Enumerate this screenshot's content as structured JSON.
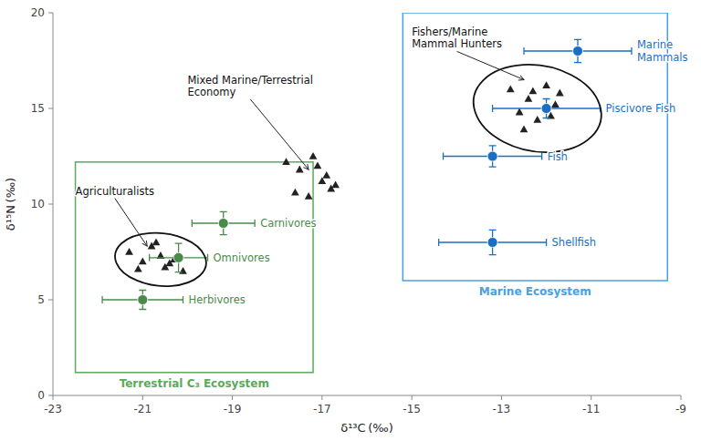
{
  "chart_data": {
    "type": "scatter",
    "xlabel": "δ¹³C (‰)",
    "ylabel": "δ¹⁵N (‰)",
    "xlim": [
      -23,
      -9
    ],
    "ylim": [
      0,
      20
    ],
    "xticks": [
      -23,
      -21,
      -19,
      -17,
      -15,
      -13,
      -11,
      -9
    ],
    "yticks": [
      0,
      5,
      10,
      15,
      20
    ],
    "series": [
      {
        "marker": "triangle",
        "color": "#222222",
        "x": [
          -21.3,
          -21.0,
          -20.8,
          -20.5,
          -20.6,
          -20.3,
          -20.1,
          -21.1,
          -20.7,
          -20.4
        ],
        "values": [
          7.5,
          7.0,
          7.8,
          6.7,
          7.3,
          7.1,
          6.5,
          6.6,
          8.0,
          6.9
        ]
      },
      {
        "marker": "triangle",
        "color": "#222222",
        "x": [
          -17.8,
          -17.5,
          -17.2,
          -17.0,
          -16.8,
          -17.3,
          -17.6,
          -16.9,
          -17.1,
          -16.7
        ],
        "values": [
          12.2,
          11.8,
          12.5,
          11.2,
          10.8,
          10.4,
          10.6,
          11.5,
          12.0,
          11.0
        ]
      },
      {
        "marker": "triangle",
        "color": "#222222",
        "x": [
          -12.8,
          -12.4,
          -12.0,
          -12.6,
          -12.2,
          -11.8,
          -12.3,
          -11.9,
          -12.5,
          -11.7
        ],
        "values": [
          16.0,
          15.5,
          16.2,
          14.8,
          14.4,
          15.2,
          15.9,
          14.6,
          13.9,
          15.8
        ]
      },
      {
        "marker": "circle",
        "color": "#4a8a4a",
        "x": [
          -21.0,
          -20.2,
          -19.2
        ],
        "values": [
          5.0,
          7.2,
          9.0
        ],
        "xerr": [
          0.9,
          0.65,
          0.7
        ],
        "yerr": [
          0.5,
          0.75,
          0.6
        ],
        "labels": [
          "Herbivores",
          "Omnivores",
          "Carnivores"
        ]
      },
      {
        "marker": "circle",
        "color": "#1a6fc4",
        "x": [
          -11.3,
          -12.0,
          -13.2,
          -13.2
        ],
        "values": [
          18.0,
          15.0,
          12.5,
          8.0
        ],
        "xerr": [
          1.2,
          1.2,
          1.1,
          1.2
        ],
        "yerr": [
          0.6,
          0.5,
          0.55,
          0.65
        ],
        "labels": [
          "Marine\nMammals",
          "Piscivore Fish",
          "Fish",
          "Shellfish"
        ]
      }
    ],
    "regions": [
      {
        "label": "Terrestrial C₃ Ecosystem",
        "color": "#5aaa5a",
        "x0": -22.5,
        "y0": 1.2,
        "w": 5.3,
        "h": 11.0
      },
      {
        "label": "Marine Ecosystem",
        "color": "#4aA0e0",
        "x0": -15.2,
        "y0": 6.0,
        "w": 5.9,
        "h": 14.0
      }
    ],
    "ellipses": [
      {
        "cx": -20.6,
        "cy": 7.1,
        "w": 2.0,
        "h": 2.8,
        "angle": 10
      },
      {
        "cx": -12.2,
        "cy": 15.0,
        "w": 2.8,
        "h": 4.6,
        "angle": 8
      }
    ],
    "annotations": [
      {
        "text": "Agriculturalists",
        "x": -20.9,
        "y": 7.8,
        "text_x": -22.5,
        "text_y": 10.5
      },
      {
        "text": "Mixed Marine/Terrestrial\nEconomy",
        "x": -17.3,
        "y": 11.8,
        "text_x": -20.0,
        "text_y": 16.3
      },
      {
        "text": "Fishers/Marine\nMammal Hunters",
        "x": -12.5,
        "y": 16.5,
        "text_x": -15.0,
        "text_y": 18.8
      }
    ]
  }
}
